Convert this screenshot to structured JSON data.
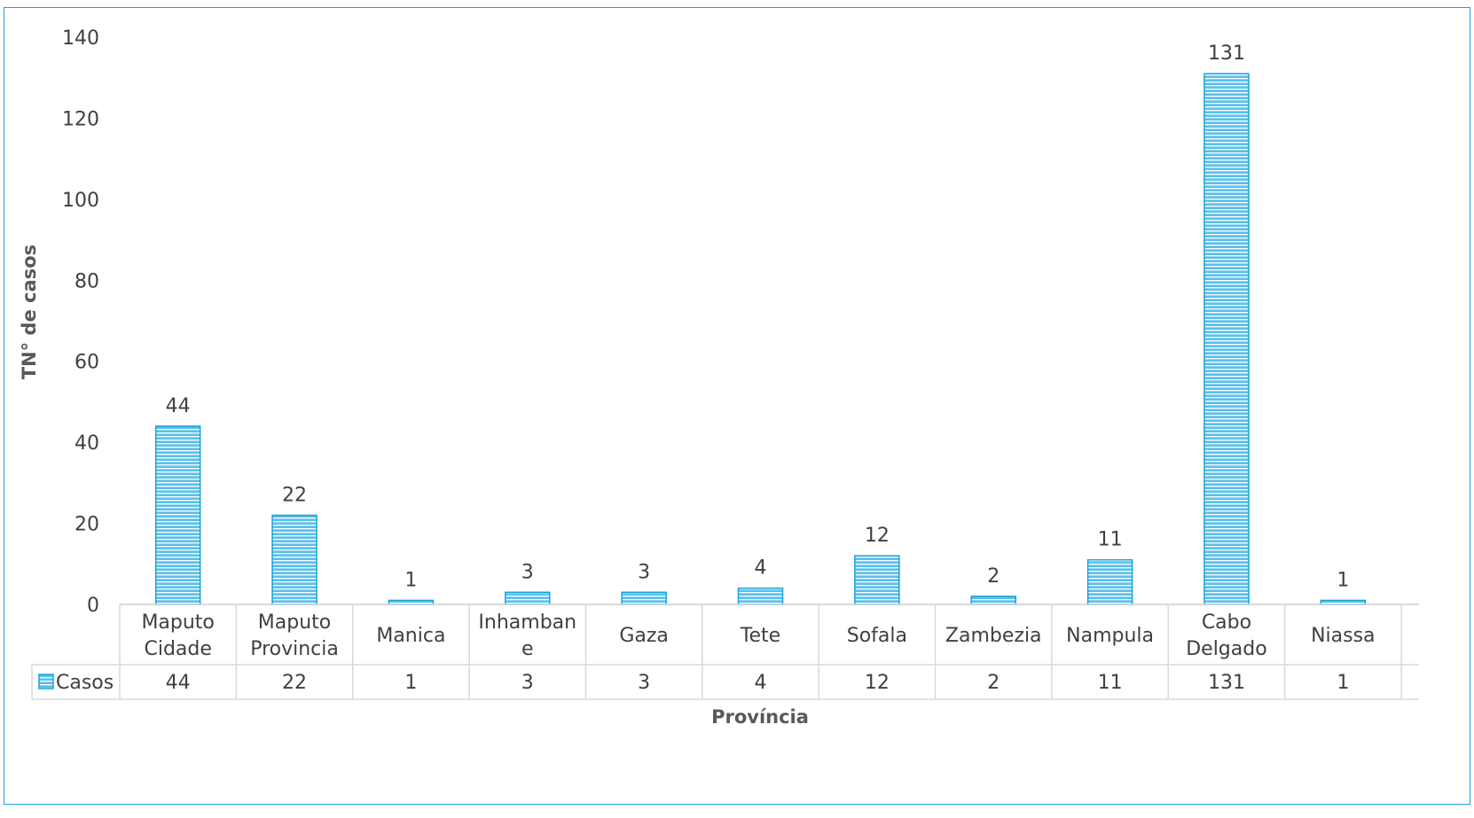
{
  "chart_data": {
    "type": "bar",
    "title": "",
    "xlabel": "Província",
    "ylabel": "TN° de casos",
    "ylim": [
      0,
      140
    ],
    "yticks": [
      0,
      20,
      40,
      60,
      80,
      100,
      120,
      140
    ],
    "grid": false,
    "legend": "data-table",
    "categories": [
      [
        "Maputo",
        "Cidade"
      ],
      [
        "Maputo",
        "Provincia"
      ],
      [
        "Manica"
      ],
      [
        "Inhamban",
        "e"
      ],
      [
        "Gaza"
      ],
      [
        "Tete"
      ],
      [
        "Sofala"
      ],
      [
        "Zambezia"
      ],
      [
        "Nampula"
      ],
      [
        "Cabo",
        "Delgado"
      ],
      [
        "Niassa"
      ]
    ],
    "series": [
      {
        "name": "Casos",
        "color": "#1aa3d8",
        "values": [
          44,
          22,
          1,
          3,
          3,
          4,
          12,
          2,
          11,
          131,
          1
        ]
      }
    ]
  }
}
